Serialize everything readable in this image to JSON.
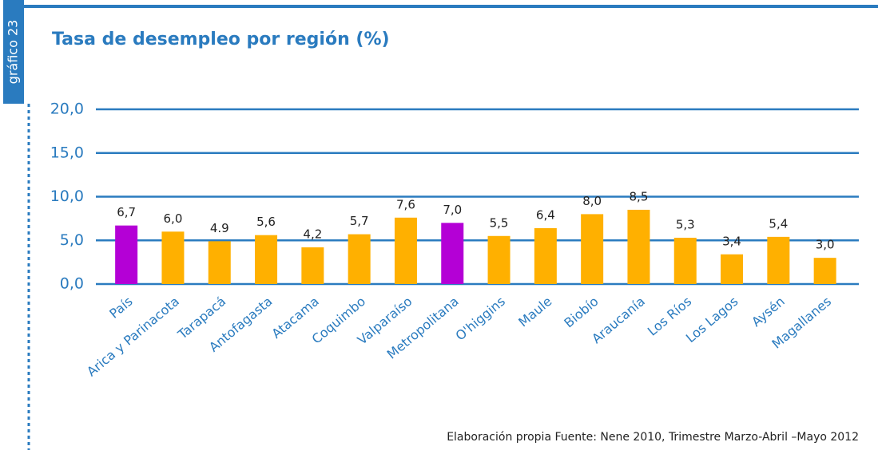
{
  "chart_data": {
    "type": "bar",
    "title": "Tasa de desempleo por región (%)",
    "side_label": "gráfico 23",
    "source": "Elaboración propia Fuente: Nene 2010, Trimestre Marzo-Abril –Mayo 2012",
    "categories": [
      "País",
      "Arica y Parinacota",
      "Tarapacá",
      "Antofagasta",
      "Atacama",
      "Coquimbo",
      "Valparaíso",
      "Metropolitana",
      "O'higgins",
      "Maule",
      "Biobío",
      "Araucanía",
      "Los Ríos",
      "Los Lagos",
      "Aysén",
      "Magallanes"
    ],
    "values": [
      6.7,
      6.0,
      4.9,
      5.6,
      4.2,
      5.7,
      7.6,
      7.0,
      5.5,
      6.4,
      8.0,
      8.5,
      5.3,
      3.4,
      5.4,
      3.0
    ],
    "value_labels": [
      "6,7",
      "6,0",
      "4.9",
      "5,6",
      "4,2",
      "5,7",
      "7,6",
      "7,0",
      "5,5",
      "6,4",
      "8,0",
      "8,5",
      "5,3",
      "3,4",
      "5,4",
      "3,0"
    ],
    "colors": [
      "#b400d6",
      "#ffb000",
      "#ffb000",
      "#ffb000",
      "#ffb000",
      "#ffb000",
      "#ffb000",
      "#b400d6",
      "#ffb000",
      "#ffb000",
      "#ffb000",
      "#ffb000",
      "#ffb000",
      "#ffb000",
      "#ffb000",
      "#ffb000"
    ],
    "ylim": [
      0,
      20
    ],
    "yticks": [
      {
        "value": 0,
        "label": "0,0"
      },
      {
        "value": 5,
        "label": "5,0"
      },
      {
        "value": 10,
        "label": "10,0"
      },
      {
        "value": 15,
        "label": "15,0"
      },
      {
        "value": 20,
        "label": "20,0"
      }
    ],
    "grid": true,
    "grid_color": "#2a7bbf"
  }
}
